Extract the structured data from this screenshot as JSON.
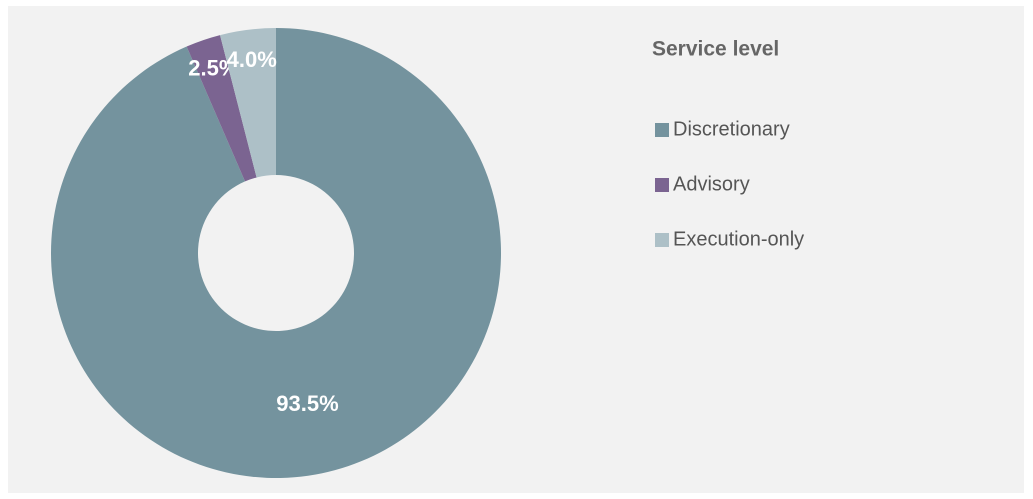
{
  "chart_data": {
    "type": "donut",
    "legend_title": "Service level",
    "categories": [
      "Discretionary",
      "Advisory",
      "Execution-only"
    ],
    "values": [
      93.5,
      2.5,
      4.0
    ],
    "value_labels": [
      "93.5%",
      "2.5%",
      "4.0%"
    ],
    "colors": [
      "#74939e",
      "#7b6491",
      "#adc0c7"
    ],
    "legend": "right"
  }
}
